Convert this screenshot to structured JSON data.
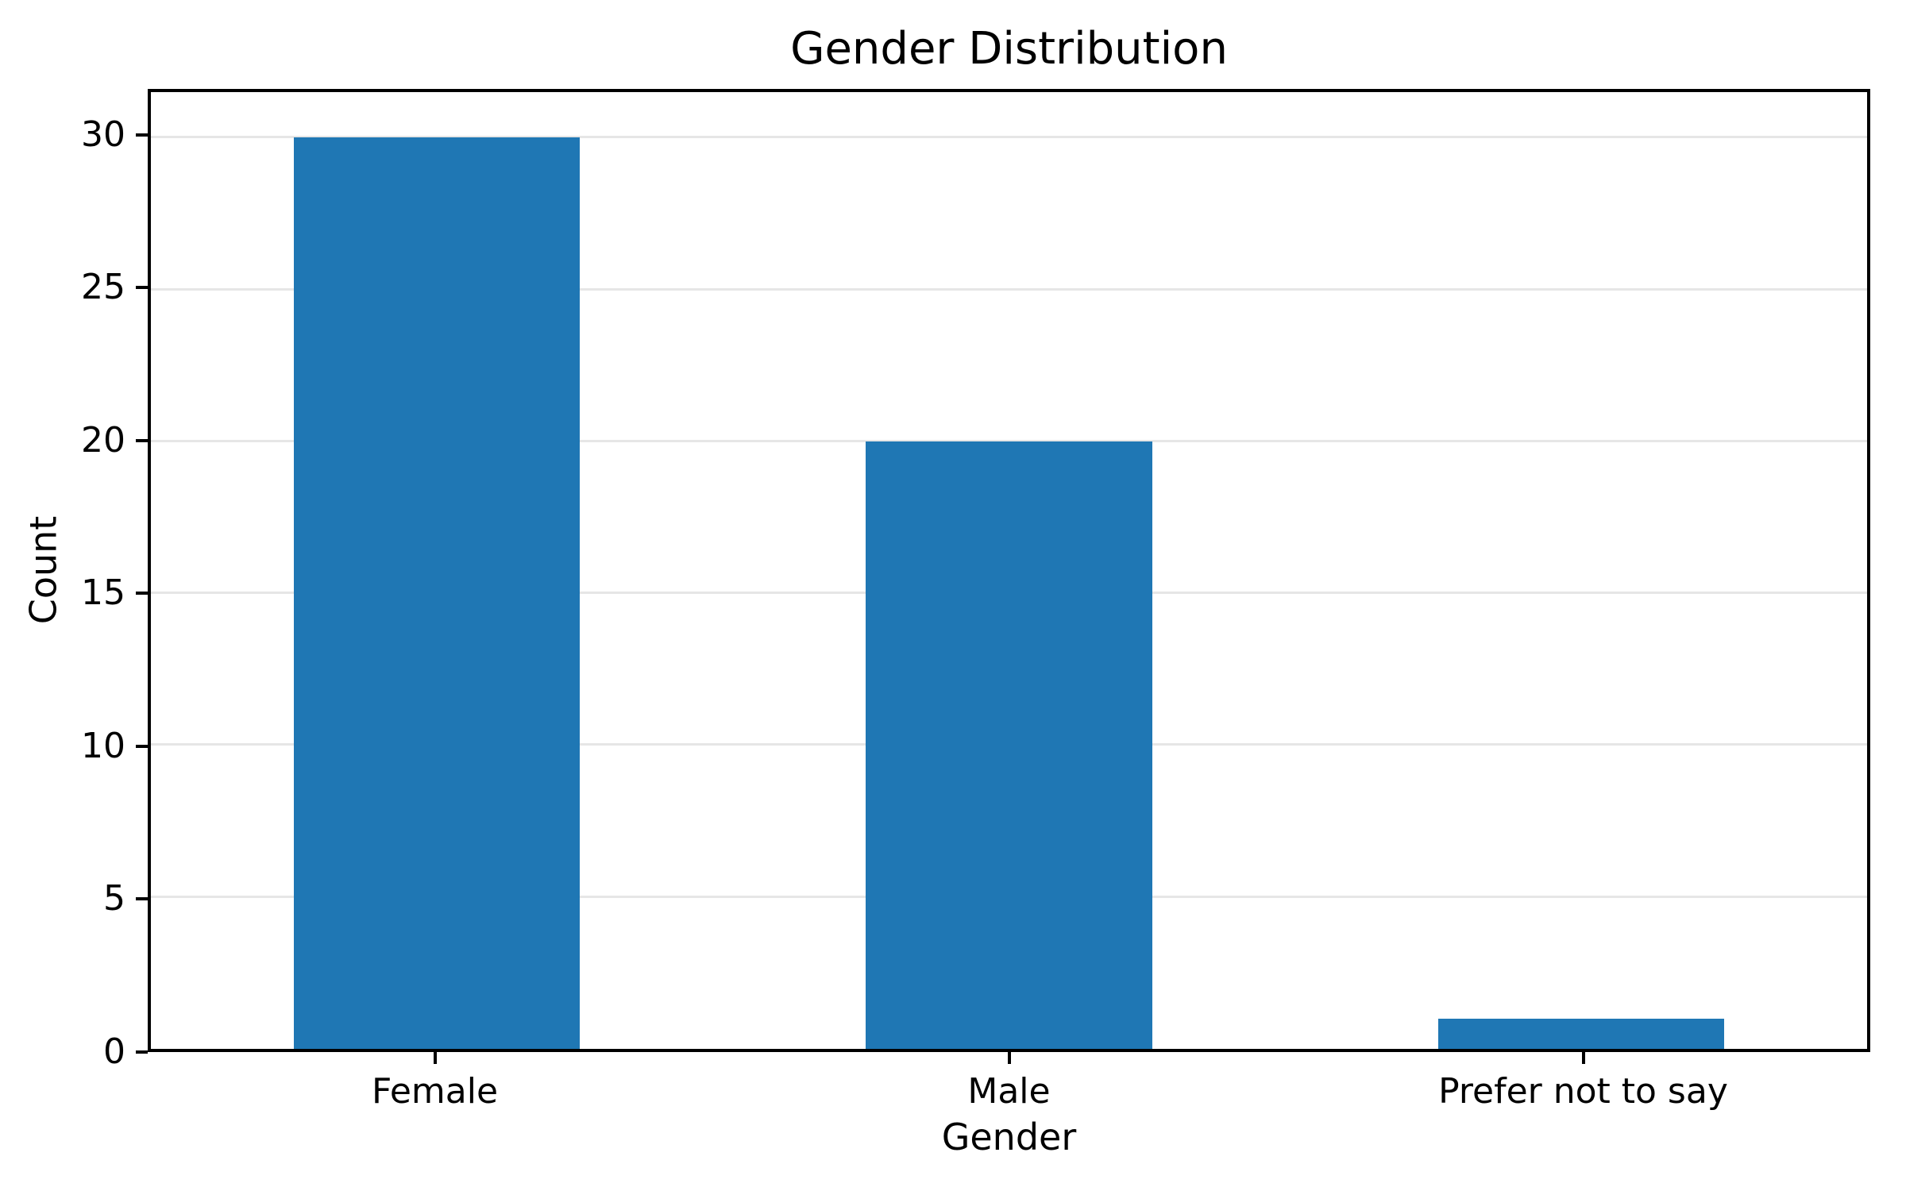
{
  "figure": {
    "background_color": "#ffffff",
    "text_color": "#000000"
  },
  "chart_data": {
    "type": "bar",
    "title": "Gender Distribution",
    "xlabel": "Gender",
    "ylabel": "Count",
    "categories": [
      "Female",
      "Male",
      "Prefer not to say"
    ],
    "values": [
      30,
      20,
      1
    ],
    "yticks": [
      0,
      5,
      10,
      15,
      20,
      25,
      30
    ],
    "ylim": [
      0,
      31.5
    ],
    "bar_color": "#1f77b4",
    "bar_width_fraction": 0.5,
    "grid": "horizontal",
    "grid_color": "#e6e6e6",
    "legend": "none"
  }
}
